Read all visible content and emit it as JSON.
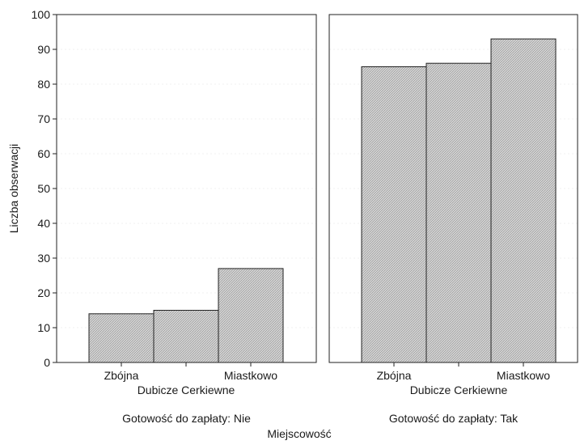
{
  "chart_data": {
    "type": "bar",
    "ylabel": "Liczba obserwacji",
    "xlabel": "Miejscowość",
    "ylim": [
      0,
      100
    ],
    "yticks": [
      0,
      10,
      20,
      30,
      40,
      50,
      60,
      70,
      80,
      90,
      100
    ],
    "grid": false,
    "categories": [
      "Zbójna",
      "Dubicze Cerkiewne",
      "Miastkowo"
    ],
    "panels": [
      {
        "label": "Gotowość do zapłaty: Nie",
        "values": [
          14,
          15,
          27
        ]
      },
      {
        "label": "Gotowość do zapłaty: Tak",
        "values": [
          85,
          86,
          93
        ]
      }
    ],
    "bar_fill": "#c8c8c8",
    "bar_stroke": "#222222"
  }
}
